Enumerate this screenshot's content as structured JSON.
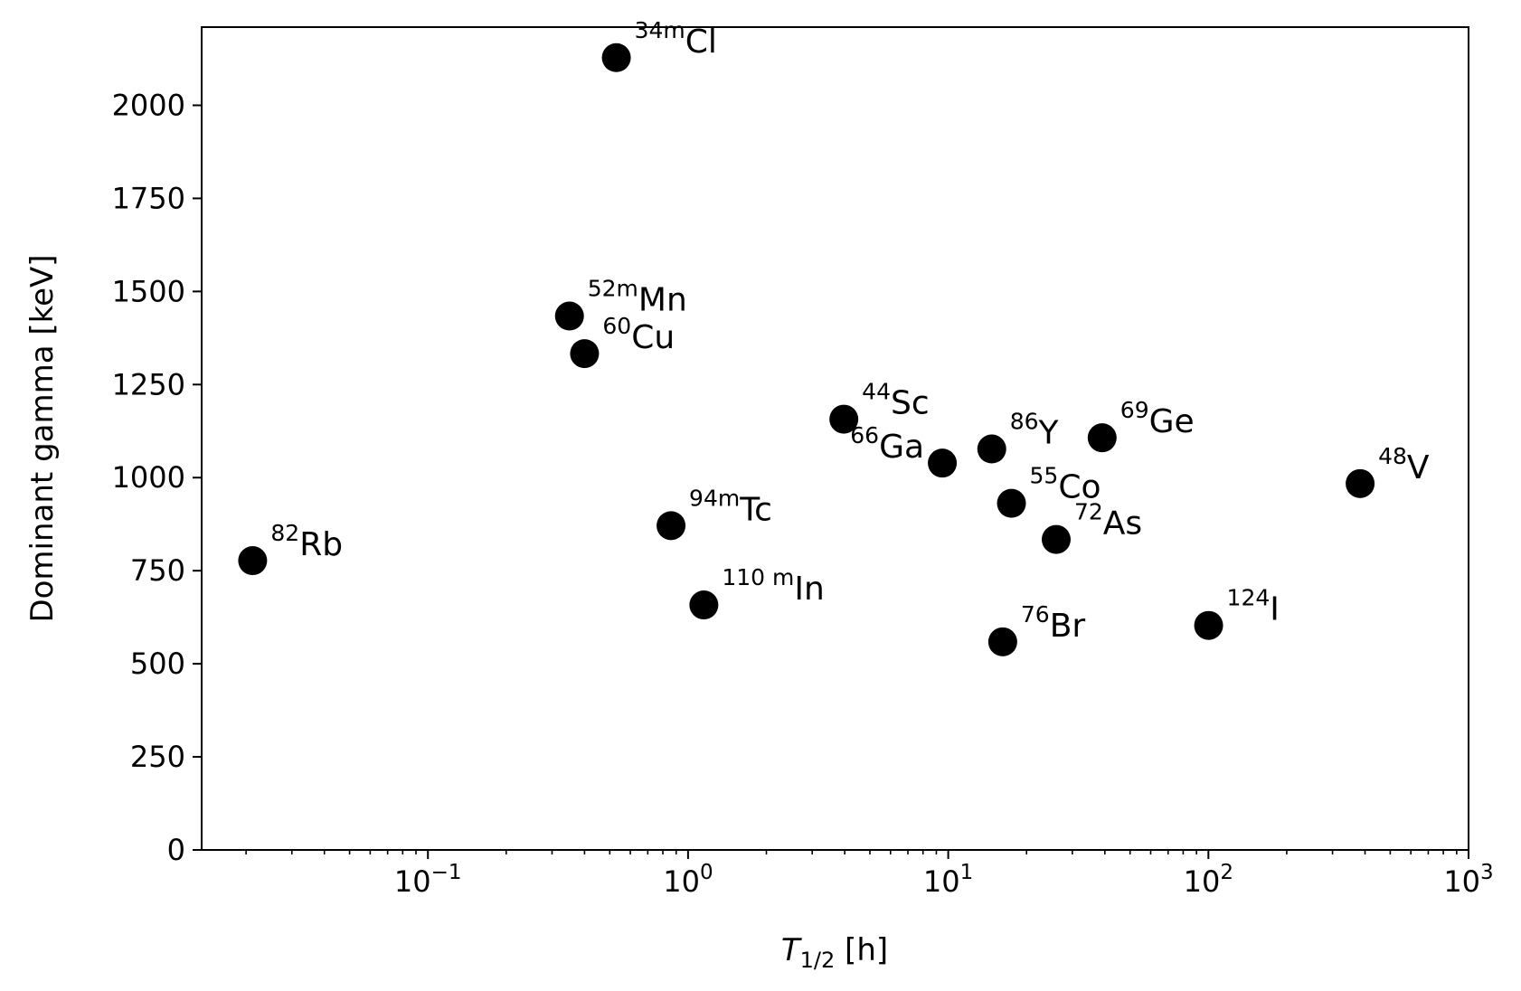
{
  "chart_data": {
    "type": "scatter",
    "xscale": "log",
    "xlim": [
      0.0135,
      1000
    ],
    "ylim": [
      0,
      2210
    ],
    "xlabel": {
      "symbol": "T",
      "subscript": "1/2",
      "unit": " [h]"
    },
    "ylabel": "Dominant gamma [keV]",
    "grid": false,
    "legend": "none",
    "marker_color": "#000000",
    "x_ticks": [
      {
        "value": 0.1,
        "base": "10",
        "exponent": "−1"
      },
      {
        "value": 1,
        "base": "10",
        "exponent": "0"
      },
      {
        "value": 10,
        "base": "10",
        "exponent": "1"
      },
      {
        "value": 100,
        "base": "10",
        "exponent": "2"
      },
      {
        "value": 1000,
        "base": "10",
        "exponent": "3"
      }
    ],
    "y_ticks": [
      {
        "value": 0,
        "label": "0"
      },
      {
        "value": 250,
        "label": "250"
      },
      {
        "value": 500,
        "label": "500"
      },
      {
        "value": 750,
        "label": "750"
      },
      {
        "value": 1000,
        "label": "1000"
      },
      {
        "value": 1250,
        "label": "1250"
      },
      {
        "value": 1500,
        "label": "1500"
      },
      {
        "value": 1750,
        "label": "1750"
      },
      {
        "value": 2000,
        "label": "2000"
      }
    ],
    "points": [
      {
        "x": 0.0212,
        "y": 777,
        "mass": "82",
        "element": "Rb",
        "label_side": "right"
      },
      {
        "x": 0.53,
        "y": 2128,
        "mass": "34m",
        "element": "Cl",
        "label_side": "right"
      },
      {
        "x": 0.35,
        "y": 1434,
        "mass": "52m",
        "element": "Mn",
        "label_side": "right"
      },
      {
        "x": 0.4,
        "y": 1333,
        "mass": "60",
        "element": "Cu",
        "label_side": "right"
      },
      {
        "x": 0.86,
        "y": 871,
        "mass": "94m",
        "element": "Tc",
        "label_side": "right"
      },
      {
        "x": 1.15,
        "y": 658,
        "mass": "110 m",
        "element": "In",
        "label_side": "right"
      },
      {
        "x": 3.97,
        "y": 1157,
        "mass": "44",
        "element": "Sc",
        "label_side": "right"
      },
      {
        "x": 9.49,
        "y": 1039,
        "mass": "66",
        "element": "Ga",
        "label_side": "left"
      },
      {
        "x": 14.7,
        "y": 1077,
        "mass": "86",
        "element": "Y",
        "label_side": "right"
      },
      {
        "x": 17.5,
        "y": 931,
        "mass": "55",
        "element": "Co",
        "label_side": "right"
      },
      {
        "x": 16.2,
        "y": 559,
        "mass": "76",
        "element": "Br",
        "label_side": "right"
      },
      {
        "x": 26.0,
        "y": 834,
        "mass": "72",
        "element": "As",
        "label_side": "right"
      },
      {
        "x": 39.05,
        "y": 1107,
        "mass": "69",
        "element": "Ge",
        "label_side": "right"
      },
      {
        "x": 100.2,
        "y": 603,
        "mass": "124",
        "element": "I",
        "label_side": "right"
      },
      {
        "x": 383,
        "y": 984,
        "mass": "48",
        "element": "V",
        "label_side": "right"
      }
    ]
  }
}
